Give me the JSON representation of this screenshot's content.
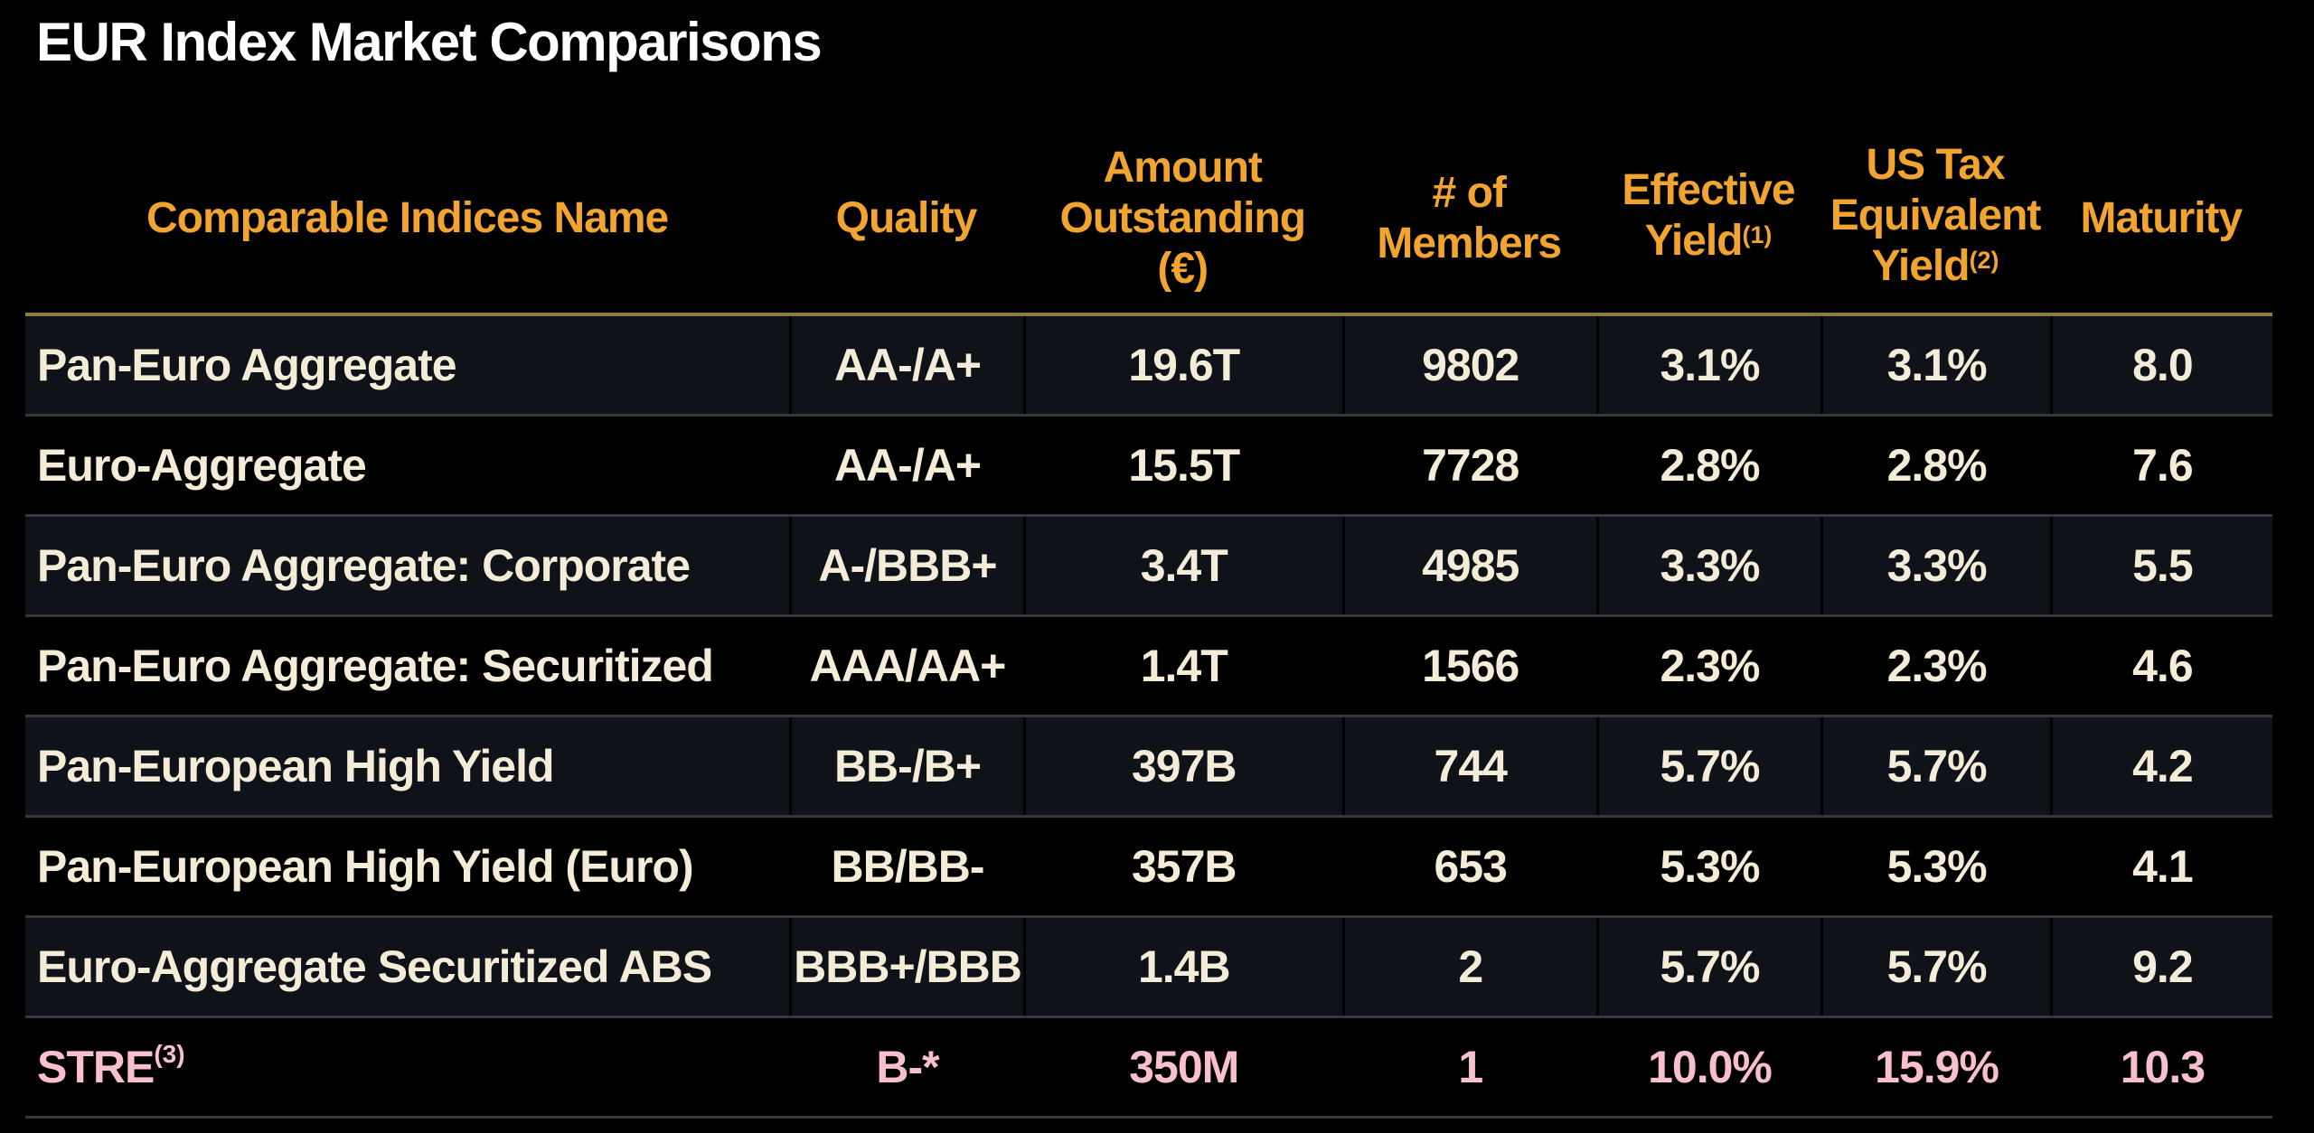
{
  "title": "EUR Index Market Comparisons",
  "colors": {
    "background": "#000000",
    "title_text": "#ffffff",
    "header_text": "#f1a42f",
    "header_underline": "#8e7b41",
    "row_text": "#f4ecd7",
    "highlight_row_text": "#f8c0cd",
    "striped_row_background": "#101219",
    "row_divider": "#36373c"
  },
  "table": {
    "columns": [
      {
        "key": "name",
        "label": "Comparable Indices Name",
        "lines": [
          "Comparable Indices Name"
        ]
      },
      {
        "key": "quality",
        "label": "Quality",
        "lines": [
          "Quality"
        ]
      },
      {
        "key": "amount",
        "label": "Amount Outstanding (€)",
        "lines": [
          "Amount",
          "Outstanding",
          "(€)"
        ]
      },
      {
        "key": "members",
        "label": "# of Members",
        "lines": [
          "# of",
          "Members"
        ]
      },
      {
        "key": "effective_yield",
        "label": "Effective Yield",
        "lines": [
          "Effective",
          "Yield"
        ],
        "superscript": "(1)"
      },
      {
        "key": "us_tax_equivalent_yield",
        "label": "US Tax Equivalent Yield",
        "lines": [
          "US Tax",
          "Equivalent",
          "Yield"
        ],
        "superscript": "(2)"
      },
      {
        "key": "maturity",
        "label": "Maturity",
        "lines": [
          "Maturity"
        ]
      }
    ],
    "rows": [
      {
        "name": "Pan-Euro Aggregate",
        "quality": "AA-/A+",
        "amount": "19.6T",
        "members": "9802",
        "effective_yield": "3.1%",
        "us_tax_equivalent_yield": "3.1%",
        "maturity": "8.0"
      },
      {
        "name": "Euro-Aggregate",
        "quality": "AA-/A+",
        "amount": "15.5T",
        "members": "7728",
        "effective_yield": "2.8%",
        "us_tax_equivalent_yield": "2.8%",
        "maturity": "7.6"
      },
      {
        "name": "Pan-Euro Aggregate: Corporate",
        "quality": "A-/BBB+",
        "amount": "3.4T",
        "members": "4985",
        "effective_yield": "3.3%",
        "us_tax_equivalent_yield": "3.3%",
        "maturity": "5.5"
      },
      {
        "name": "Pan-Euro Aggregate: Securitized",
        "quality": "AAA/AA+",
        "amount": "1.4T",
        "members": "1566",
        "effective_yield": "2.3%",
        "us_tax_equivalent_yield": "2.3%",
        "maturity": "4.6"
      },
      {
        "name": "Pan-European High Yield",
        "quality": "BB-/B+",
        "amount": "397B",
        "members": "744",
        "effective_yield": "5.7%",
        "us_tax_equivalent_yield": "5.7%",
        "maturity": "4.2"
      },
      {
        "name": "Pan-European High Yield (Euro)",
        "quality": "BB/BB-",
        "amount": "357B",
        "members": "653",
        "effective_yield": "5.3%",
        "us_tax_equivalent_yield": "5.3%",
        "maturity": "4.1"
      },
      {
        "name": "Euro-Aggregate Securitized ABS",
        "quality": "BBB+/BBB",
        "amount": "1.4B",
        "members": "2",
        "effective_yield": "5.7%",
        "us_tax_equivalent_yield": "5.7%",
        "maturity": "9.2"
      },
      {
        "name": "STRE",
        "name_superscript": "(3)",
        "quality": "B-*",
        "amount": "350M",
        "members": "1",
        "effective_yield": "10.0%",
        "us_tax_equivalent_yield": "15.9%",
        "maturity": "10.3",
        "highlighted": true
      }
    ]
  }
}
